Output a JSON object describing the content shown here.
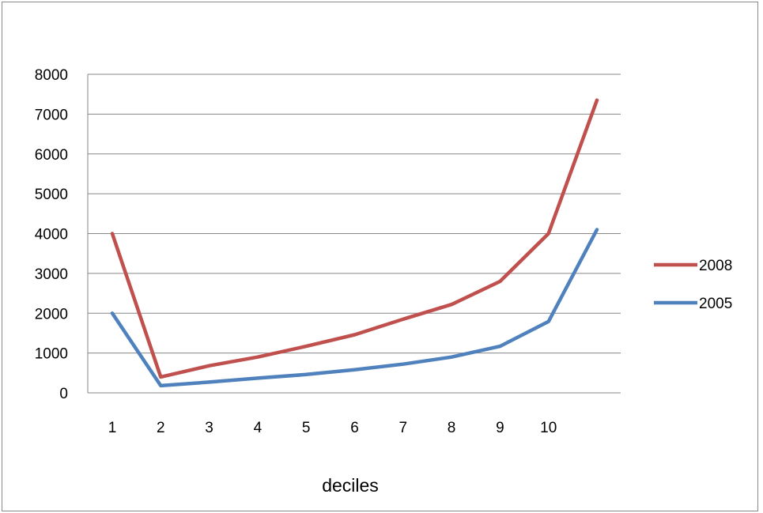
{
  "chart_data": {
    "type": "line",
    "title": "",
    "xlabel": "deciles",
    "ylabel": "",
    "categories": [
      "1",
      "2",
      "3",
      "4",
      "5",
      "6",
      "7",
      "8",
      "9",
      "10",
      ""
    ],
    "y_ticks": [
      "0",
      "1000",
      "2000",
      "3000",
      "4000",
      "5000",
      "6000",
      "7000",
      "8000"
    ],
    "ylim": [
      0,
      8000
    ],
    "grid": "horizontal",
    "legend_position": "right",
    "series": [
      {
        "name": "2008",
        "color": "#c0504d",
        "values": [
          4000,
          400,
          680,
          900,
          1170,
          1460,
          1850,
          2220,
          2800,
          4000,
          7350
        ]
      },
      {
        "name": "2005",
        "color": "#4f81bd",
        "values": [
          2000,
          180,
          270,
          370,
          460,
          580,
          720,
          900,
          1170,
          1790,
          4100
        ]
      }
    ]
  }
}
